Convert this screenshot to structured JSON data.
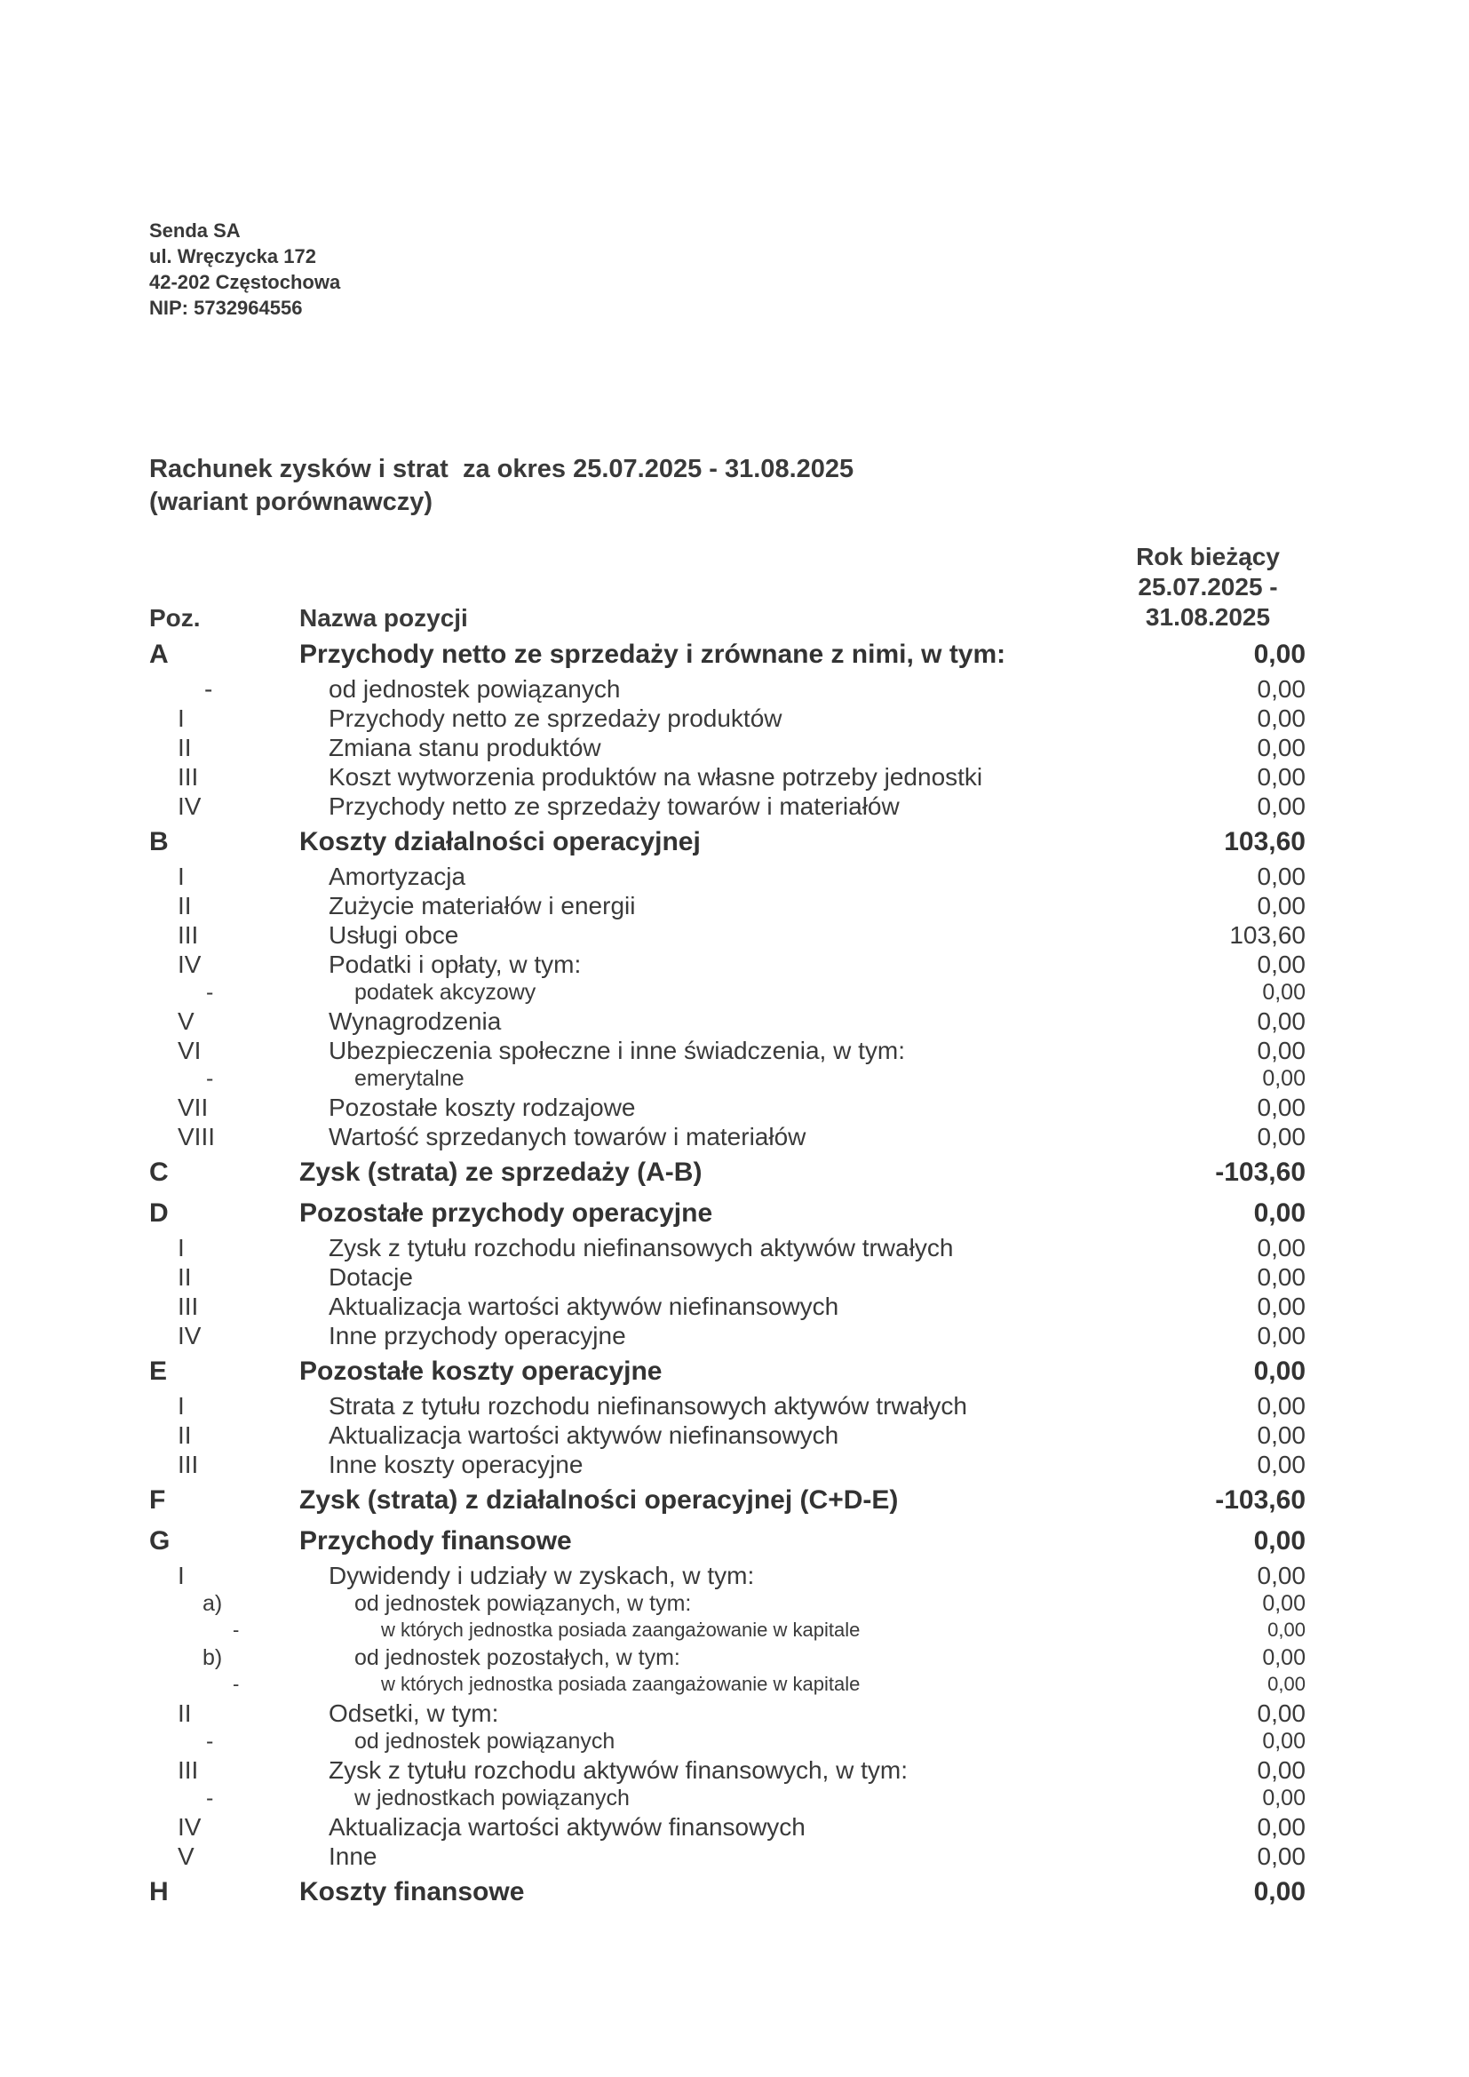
{
  "company": {
    "name": "Senda SA",
    "street": "ul. Wręczycka 172",
    "city": "42-202 Częstochowa",
    "nip": "NIP: 5732964556"
  },
  "title": {
    "line1": "Rachunek zysków i strat  za okres 25.07.2025 - 31.08.2025",
    "line2": "(wariant porównawczy)"
  },
  "table": {
    "col_poz": "Poz.",
    "col_name": "Nazwa pozycji",
    "period_header": [
      "Rok bieżący",
      "25.07.2025 -",
      "31.08.2025"
    ],
    "rows": [
      {
        "level": "section",
        "poz": "A",
        "name": "Przychody netto ze sprzedaży i zrównane z nimi, w tym:",
        "value": "0,00"
      },
      {
        "level": "item-dash",
        "poz": "-",
        "name": "od jednostek powiązanych",
        "value": "0,00"
      },
      {
        "level": "item",
        "poz": "I",
        "name": "Przychody netto ze sprzedaży produktów",
        "value": "0,00"
      },
      {
        "level": "item",
        "poz": "II",
        "name": "Zmiana stanu produktów",
        "value": "0,00"
      },
      {
        "level": "item",
        "poz": "III",
        "name": "Koszt wytworzenia produktów na własne potrzeby jednostki",
        "value": "0,00"
      },
      {
        "level": "item",
        "poz": "IV",
        "name": "Przychody netto ze sprzedaży towarów i materiałów",
        "value": "0,00"
      },
      {
        "level": "section",
        "poz": "B",
        "name": "Koszty działalności operacyjnej",
        "value": "103,60"
      },
      {
        "level": "item",
        "poz": "I",
        "name": "Amortyzacja",
        "value": "0,00"
      },
      {
        "level": "item",
        "poz": "II",
        "name": "Zużycie materiałów i energii",
        "value": "0,00"
      },
      {
        "level": "item",
        "poz": "III",
        "name": "Usługi obce",
        "value": "103,60"
      },
      {
        "level": "item",
        "poz": "IV",
        "name": "Podatki i opłaty, w tym:",
        "value": "0,00"
      },
      {
        "level": "sub",
        "poz": "-",
        "name": "podatek akcyzowy",
        "value": "0,00"
      },
      {
        "level": "item",
        "poz": "V",
        "name": "Wynagrodzenia",
        "value": "0,00"
      },
      {
        "level": "item",
        "poz": "VI",
        "name": "Ubezpieczenia społeczne i inne świadczenia, w tym:",
        "value": "0,00"
      },
      {
        "level": "sub",
        "poz": "-",
        "name": "emerytalne",
        "value": "0,00"
      },
      {
        "level": "item",
        "poz": "VII",
        "name": "Pozostałe koszty rodzajowe",
        "value": "0,00"
      },
      {
        "level": "item",
        "poz": "VIII",
        "name": "Wartość sprzedanych towarów i materiałów",
        "value": "0,00"
      },
      {
        "level": "section",
        "poz": "C",
        "name": "Zysk (strata) ze sprzedaży (A-B)",
        "value": "-103,60"
      },
      {
        "level": "section",
        "poz": "D",
        "name": "Pozostałe przychody operacyjne",
        "value": "0,00"
      },
      {
        "level": "item",
        "poz": "I",
        "name": "Zysk z tytułu rozchodu niefinansowych aktywów trwałych",
        "value": "0,00"
      },
      {
        "level": "item",
        "poz": "II",
        "name": "Dotacje",
        "value": "0,00"
      },
      {
        "level": "item",
        "poz": "III",
        "name": "Aktualizacja wartości aktywów niefinansowych",
        "value": "0,00"
      },
      {
        "level": "item",
        "poz": "IV",
        "name": "Inne przychody operacyjne",
        "value": "0,00"
      },
      {
        "level": "section",
        "poz": "E",
        "name": "Pozostałe koszty operacyjne",
        "value": "0,00"
      },
      {
        "level": "item",
        "poz": "I",
        "name": "Strata z tytułu rozchodu niefinansowych aktywów trwałych",
        "value": "0,00"
      },
      {
        "level": "item",
        "poz": "II",
        "name": "Aktualizacja wartości aktywów niefinansowych",
        "value": "0,00"
      },
      {
        "level": "item",
        "poz": "III",
        "name": "Inne koszty operacyjne",
        "value": "0,00"
      },
      {
        "level": "section",
        "poz": "F",
        "name": "Zysk (strata) z działalności operacyjnej (C+D-E)",
        "value": "-103,60"
      },
      {
        "level": "section",
        "poz": "G",
        "name": "Przychody finansowe",
        "value": "0,00"
      },
      {
        "level": "item",
        "poz": "I",
        "name": "Dywidendy i udziały w zyskach, w tym:",
        "value": "0,00"
      },
      {
        "level": "sub-ab",
        "poz": "a)",
        "name": "od jednostek powiązanych, w tym:",
        "value": "0,00"
      },
      {
        "level": "deep",
        "poz": "-",
        "name": "w których jednostka posiada zaangażowanie w kapitale",
        "value": "0,00"
      },
      {
        "level": "sub-ab",
        "poz": "b)",
        "name": "od jednostek pozostałych, w tym:",
        "value": "0,00"
      },
      {
        "level": "deep",
        "poz": "-",
        "name": "w których jednostka posiada zaangażowanie w kapitale",
        "value": "0,00"
      },
      {
        "level": "item",
        "poz": "II",
        "name": "Odsetki, w tym:",
        "value": "0,00"
      },
      {
        "level": "sub",
        "poz": "-",
        "name": "od jednostek powiązanych",
        "value": "0,00"
      },
      {
        "level": "item",
        "poz": "III",
        "name": "Zysk z tytułu rozchodu aktywów finansowych, w tym:",
        "value": "0,00"
      },
      {
        "level": "sub",
        "poz": "-",
        "name": "w jednostkach powiązanych",
        "value": "0,00"
      },
      {
        "level": "item",
        "poz": "IV",
        "name": "Aktualizacja wartości aktywów finansowych",
        "value": "0,00"
      },
      {
        "level": "item",
        "poz": "V",
        "name": "Inne",
        "value": "0,00"
      },
      {
        "level": "section",
        "poz": "H",
        "name": "Koszty finansowe",
        "value": "0,00"
      }
    ]
  }
}
